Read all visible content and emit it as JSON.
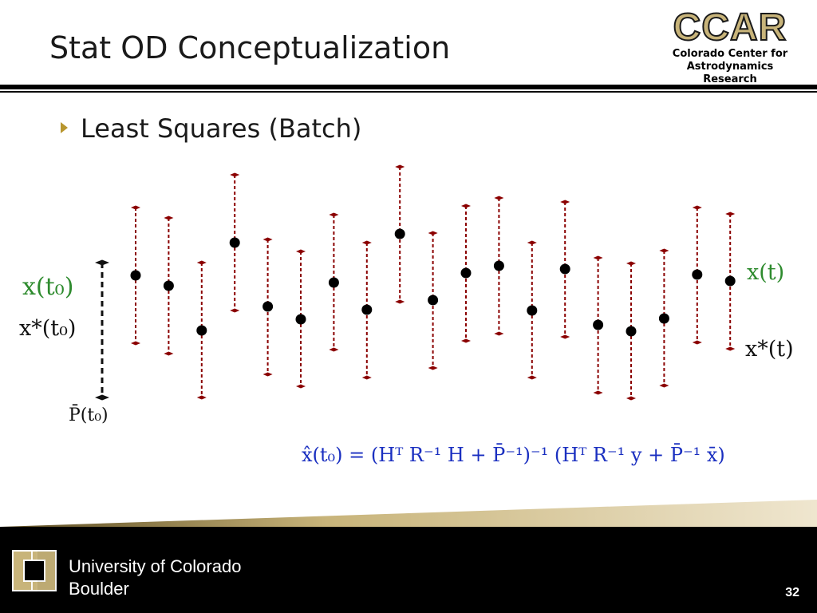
{
  "slide": {
    "title": "Stat OD Conceptualization",
    "bullet": "Least Squares (Batch)",
    "page_number": "32"
  },
  "logo": {
    "mark": "CCAR",
    "line1": "Colorado Center for",
    "line2": "Astrodynamics Research"
  },
  "labels": {
    "x_t0": "x(t₀)",
    "x_star_t0": "x*(t₀)",
    "p_bar_t0": "P̄(t₀)",
    "x_t": "x(t)",
    "x_star_t": "x*(t)"
  },
  "equation": "x̂(t₀) = (Hᵀ R⁻¹ H + P̄⁻¹)⁻¹ (Hᵀ R⁻¹ y + P̄⁻¹ x̄)",
  "footer": {
    "line1": "University of Colorado",
    "line2": "Boulder"
  },
  "colors": {
    "accent_gold": "#c8b47a",
    "equation_blue": "#1a2fc0",
    "label_green": "#2e8b2e",
    "errorbar_red": "#8b0000"
  },
  "chart_data": {
    "type": "scatter",
    "note_units": "vertical value with symmetric error bar",
    "points": [
      {
        "x": 1,
        "y": 345,
        "lo": 260,
        "hi": 430
      },
      {
        "x": 2,
        "y": 358,
        "lo": 273,
        "hi": 443
      },
      {
        "x": 3,
        "y": 414,
        "lo": 329,
        "hi": 498
      },
      {
        "x": 4,
        "y": 304,
        "lo": 219,
        "hi": 389
      },
      {
        "x": 5,
        "y": 384,
        "lo": 300,
        "hi": 469
      },
      {
        "x": 6,
        "y": 400,
        "lo": 315,
        "hi": 484
      },
      {
        "x": 7,
        "y": 354,
        "lo": 269,
        "hi": 438
      },
      {
        "x": 8,
        "y": 388,
        "lo": 304,
        "hi": 473
      },
      {
        "x": 9,
        "y": 293,
        "lo": 209,
        "hi": 378
      },
      {
        "x": 10,
        "y": 376,
        "lo": 292,
        "hi": 461
      },
      {
        "x": 11,
        "y": 342,
        "lo": 258,
        "hi": 427
      },
      {
        "x": 12,
        "y": 333,
        "lo": 248,
        "hi": 418
      },
      {
        "x": 13,
        "y": 389,
        "lo": 304,
        "hi": 473
      },
      {
        "x": 14,
        "y": 337,
        "lo": 253,
        "hi": 422
      },
      {
        "x": 15,
        "y": 407,
        "lo": 323,
        "hi": 492
      },
      {
        "x": 16,
        "y": 415,
        "lo": 330,
        "hi": 499
      },
      {
        "x": 17,
        "y": 399,
        "lo": 314,
        "hi": 483
      },
      {
        "x": 18,
        "y": 344,
        "lo": 260,
        "hi": 429
      },
      {
        "x": 19,
        "y": 352,
        "lo": 268,
        "hi": 437
      }
    ],
    "initial_bar": {
      "lo": 329,
      "hi": 498
    }
  }
}
